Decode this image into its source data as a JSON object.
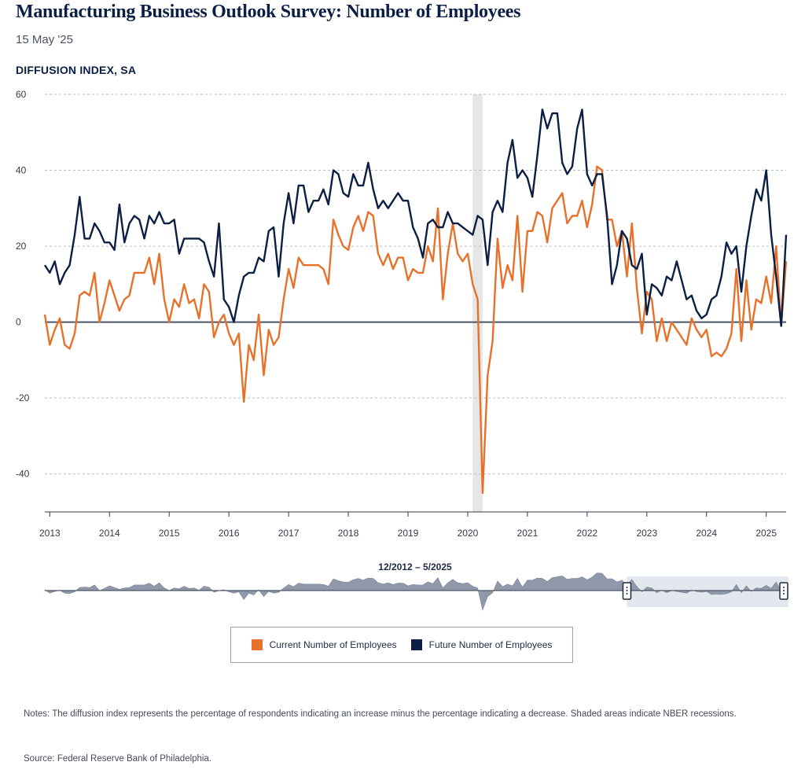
{
  "header": {
    "title": "Manufacturing Business Outlook Survey: Number of Employees",
    "date": "15 May '25",
    "ylabel": "DIFFUSION INDEX, SA"
  },
  "navigator": {
    "range_label": "12/2012 – 5/2025"
  },
  "legend": {
    "current_label": "Current Number of Employees",
    "future_label": "Future Number of Employees"
  },
  "footer": {
    "notes": "Notes: The diffusion index represents the percentage of respondents indicating an increase minus the percentage indicating a decrease. Shaded areas indicate NBER recessions.",
    "source": "Source: Federal Reserve Bank of Philadelphia."
  },
  "colors": {
    "current": "#e8712a",
    "future": "#0b1f44",
    "recession": "#e6e6e6",
    "navigator": "#8f99aa"
  },
  "chart_data": {
    "type": "line",
    "xlim": [
      "2012-12",
      "2025-05"
    ],
    "ylim": [
      -50,
      60
    ],
    "yticks": [
      60,
      40,
      20,
      0,
      -20,
      -40
    ],
    "xticks": [
      "2013",
      "2014",
      "2015",
      "2016",
      "2017",
      "2018",
      "2019",
      "2020",
      "2021",
      "2022",
      "2023",
      "2024",
      "2025"
    ],
    "recessions": [
      [
        "2020-02",
        "2020-04"
      ]
    ],
    "grid": "horizontal dashed",
    "series": [
      {
        "name": "Current Number of Employees",
        "color": "#e8712a",
        "start": "2012-12",
        "values": [
          2,
          -6,
          -2,
          1,
          -6,
          -7,
          -3,
          7,
          8,
          7,
          13,
          0,
          5,
          11,
          7,
          3,
          6,
          7,
          13,
          13,
          13,
          17,
          10,
          18,
          6,
          0,
          6,
          4,
          10,
          5,
          6,
          1,
          10,
          8,
          -4,
          0,
          2,
          -3,
          -6,
          -3,
          -21,
          -6,
          -10,
          2,
          -14,
          -2,
          -6,
          -4,
          6,
          14,
          9,
          17,
          15,
          15,
          15,
          15,
          14,
          10,
          27,
          23,
          20,
          19,
          25,
          28,
          24,
          29,
          28,
          18,
          15,
          18,
          14,
          17,
          17,
          11,
          14,
          13,
          13,
          20,
          16,
          30,
          6,
          18,
          26,
          18,
          16,
          18,
          10,
          6,
          -45,
          -14,
          -5,
          22,
          9,
          15,
          11,
          28,
          8,
          24,
          24,
          29,
          28,
          21,
          30,
          32,
          34,
          26,
          28,
          28,
          32,
          25,
          31,
          41,
          40,
          27,
          27,
          20,
          24,
          12,
          26,
          9,
          -3,
          8,
          6,
          -5,
          1,
          -5,
          0,
          -2,
          -4,
          -6,
          1,
          -2,
          -4,
          -2,
          -9,
          -8,
          -9,
          -7,
          -3,
          14,
          -5,
          11,
          -2,
          6,
          5,
          12,
          5,
          20,
          -1,
          16
        ]
      },
      {
        "name": "Future Number of Employees",
        "color": "#0b1f44",
        "start": "2012-12",
        "values": [
          15,
          13,
          16,
          10,
          13,
          15,
          23,
          33,
          22,
          22,
          26,
          24,
          21,
          21,
          19,
          31,
          21,
          26,
          28,
          27,
          22,
          28,
          26,
          29,
          26,
          26,
          27,
          18,
          22,
          22,
          22,
          22,
          21,
          16,
          12,
          26,
          6,
          4,
          0,
          7,
          12,
          13,
          13,
          17,
          16,
          24,
          25,
          12,
          26,
          34,
          26,
          36,
          36,
          29,
          32,
          32,
          35,
          31,
          40,
          39,
          34,
          33,
          39,
          36,
          36,
          42,
          35,
          30,
          32,
          30,
          32,
          34,
          32,
          32,
          25,
          22,
          17,
          26,
          27,
          25,
          25,
          29,
          26,
          26,
          25,
          24,
          23,
          28,
          27,
          15,
          29,
          32,
          29,
          42,
          48,
          38,
          40,
          38,
          33,
          44,
          56,
          51,
          55,
          55,
          42,
          39,
          41,
          51,
          56,
          39,
          36,
          39,
          39,
          28,
          10,
          15,
          24,
          22,
          15,
          14,
          18,
          2,
          10,
          9,
          7,
          12,
          11,
          16,
          11,
          6,
          7,
          3,
          1,
          2,
          6,
          7,
          12,
          21,
          18,
          20,
          8,
          20,
          28,
          35,
          32,
          40,
          23,
          12,
          -1,
          23
        ]
      }
    ]
  }
}
